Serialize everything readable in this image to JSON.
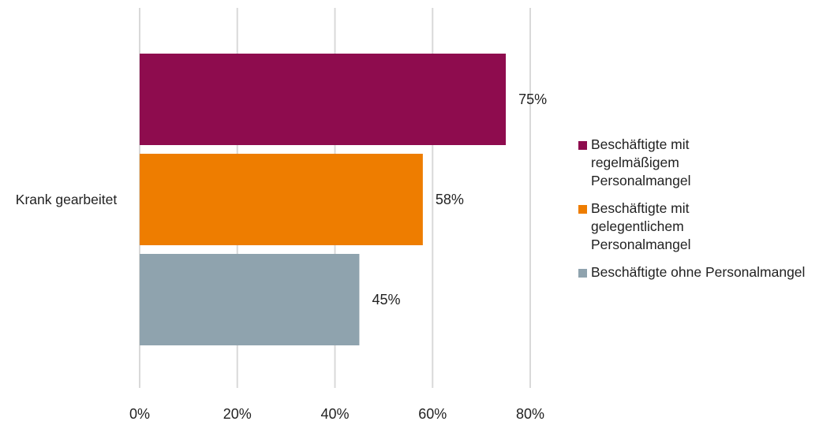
{
  "chart_data": {
    "type": "bar",
    "orientation": "horizontal",
    "categories": [
      "Krank gearbeitet"
    ],
    "series": [
      {
        "name": "Beschäftigte mit regelmäßigem Personalmangel",
        "values": [
          75
        ],
        "label": "75%",
        "color": "#8E0C4E"
      },
      {
        "name": "Beschäftigte mit gelegentlichem Personalmangel",
        "values": [
          58
        ],
        "label": "58%",
        "color": "#EE7D00"
      },
      {
        "name": "Beschäftigte ohne Personalmangel",
        "values": [
          45
        ],
        "label": "45%",
        "color": "#8FA3AE"
      }
    ],
    "xlim": [
      0,
      80
    ],
    "xticks": [
      "0%",
      "20%",
      "40%",
      "60%",
      "80%"
    ],
    "grid": true,
    "legend_position": "right",
    "title": "",
    "xlabel": "",
    "ylabel": ""
  }
}
